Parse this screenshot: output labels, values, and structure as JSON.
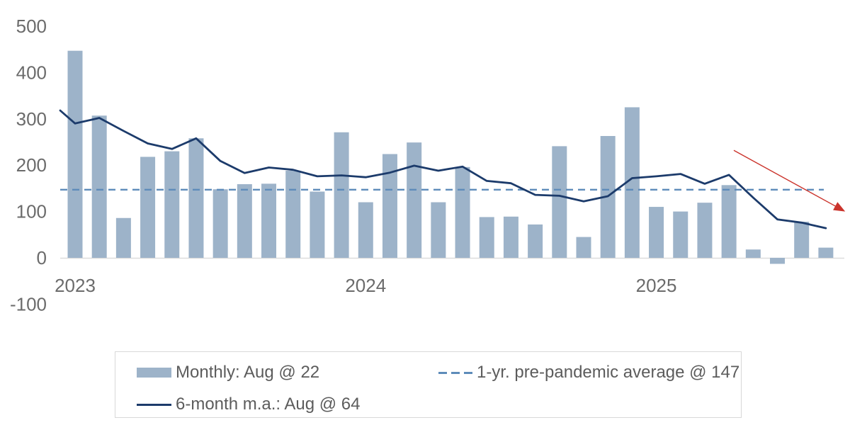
{
  "chart_data": {
    "type": "bar",
    "title": "",
    "categories": [
      "Jan 2023",
      "Feb 2023",
      "Mar 2023",
      "Apr 2023",
      "May 2023",
      "Jun 2023",
      "Jul 2023",
      "Aug 2023",
      "Sep 2023",
      "Oct 2023",
      "Nov 2023",
      "Dec 2023",
      "Jan 2024",
      "Feb 2024",
      "Mar 2024",
      "Apr 2024",
      "May 2024",
      "Jun 2024",
      "Jul 2024",
      "Aug 2024",
      "Sep 2024",
      "Oct 2024",
      "Nov 2024",
      "Dec 2024",
      "Jan 2025",
      "Feb 2025",
      "Mar 2025",
      "Apr 2025",
      "May 2025",
      "Jun 2025",
      "Jul 2025",
      "Aug 2025"
    ],
    "series": [
      {
        "name": "Monthly",
        "render": "bar",
        "color": "#9DB3C9",
        "values": [
          447,
          307,
          86,
          218,
          230,
          258,
          148,
          159,
          160,
          188,
          143,
          271,
          120,
          224,
          249,
          120,
          196,
          88,
          89,
          72,
          241,
          45,
          263,
          325,
          110,
          100,
          119,
          157,
          18,
          -13,
          78,
          22
        ]
      },
      {
        "name": "6-month m.a.",
        "render": "line",
        "color": "#1C3B6B",
        "lead_in_value": 318,
        "values": [
          290,
          302,
          274,
          247,
          235,
          258,
          209,
          183,
          195,
          190,
          176,
          178,
          174,
          184,
          199,
          188,
          197,
          166,
          161,
          136,
          134,
          122,
          133,
          172,
          176,
          181,
          160,
          179,
          130,
          83,
          76,
          64
        ]
      },
      {
        "name": "1-yr. pre-pandemic average",
        "render": "ref-dashed-line",
        "color": "#5E8CBA",
        "value": 147
      }
    ],
    "ylim": [
      -100,
      500
    ],
    "y_ticks": [
      500,
      400,
      300,
      200,
      100,
      0,
      -100
    ],
    "x_tick_labels": [
      {
        "label": "2023",
        "month_index": 0
      },
      {
        "label": "2024",
        "month_index": 12
      },
      {
        "label": "2025",
        "month_index": 24
      }
    ],
    "grid": "zero-baseline-only",
    "legend_position": "bottom",
    "annotation_arrow": {
      "color": "#CB342C",
      "from": {
        "month_index": 27.2,
        "value": 232
      },
      "to": {
        "month_index": 31.8,
        "value": 100
      }
    }
  },
  "legend": {
    "monthly_label": "Monthly: Aug @ 22",
    "ma_label": "6-month m.a.: Aug @ 64",
    "ref_label": "1-yr. pre-pandemic average @ 147"
  },
  "colors": {
    "bar": "#9DB3C9",
    "ma_line": "#1C3B6B",
    "ref_line": "#5E8CBA",
    "arrow": "#CB342C",
    "axis_text": "#6b6b6b",
    "baseline": "#dcdcdc"
  }
}
